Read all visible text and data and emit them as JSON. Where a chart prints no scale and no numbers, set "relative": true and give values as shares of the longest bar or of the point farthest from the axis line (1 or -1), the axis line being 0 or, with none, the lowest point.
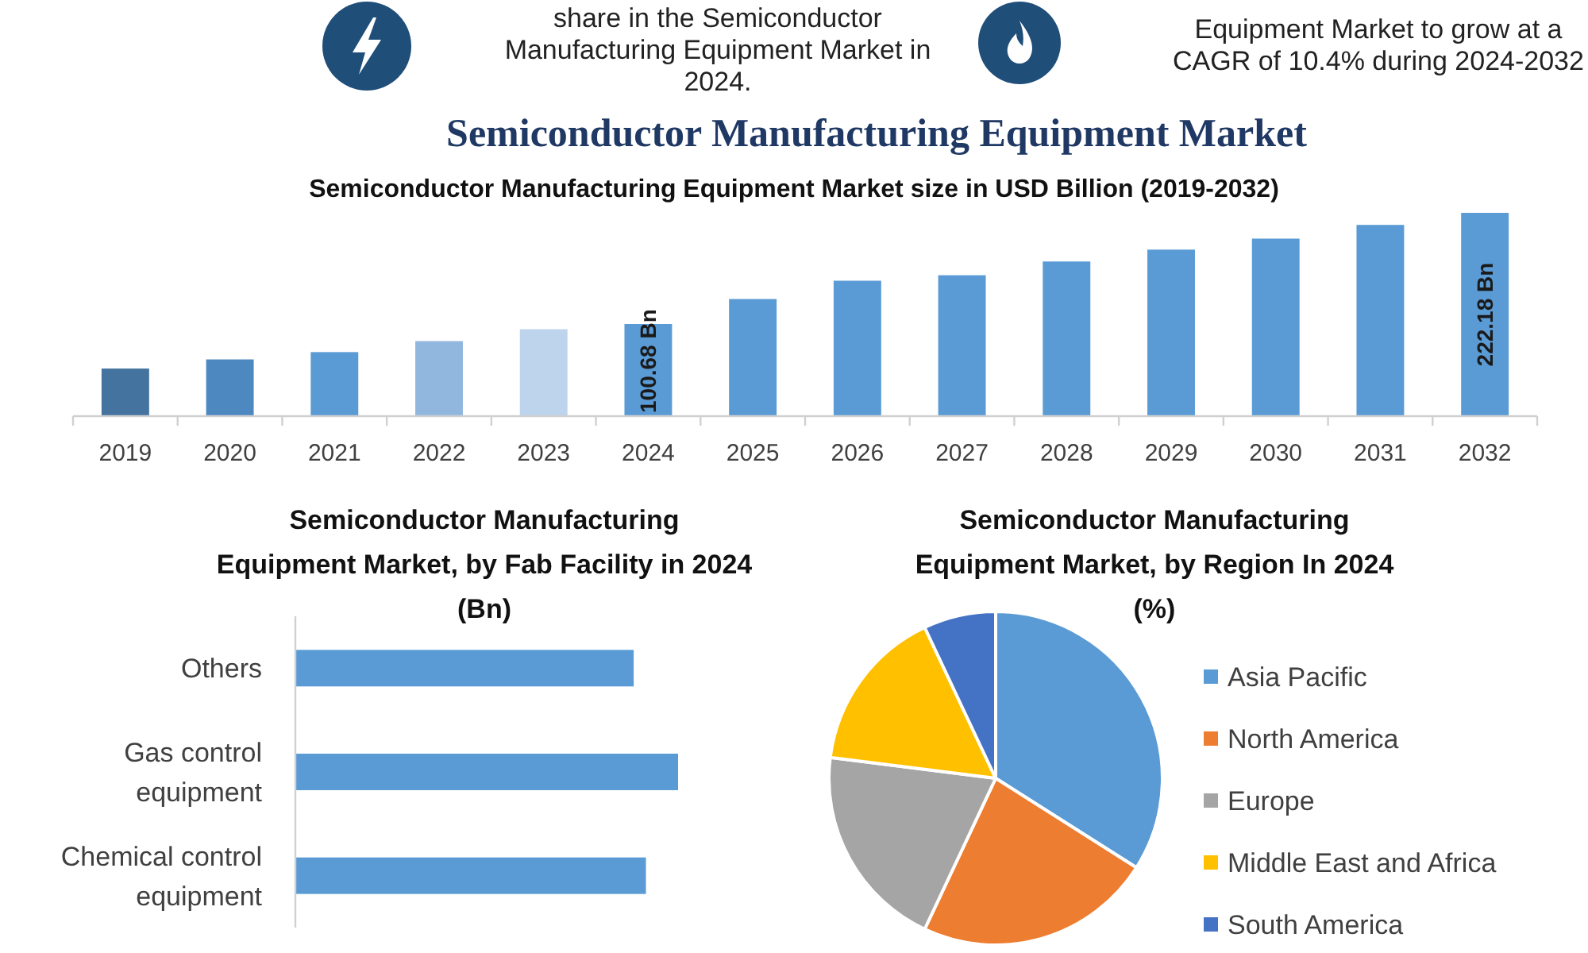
{
  "chart_data": [
    {
      "type": "bar",
      "title": "Semiconductor Manufacturing Equipment Market",
      "subtitle": "Semiconductor Manufacturing Equipment Market size in USD Billion (2019-2032)",
      "annotations": [
        "share in the Semiconductor Manufacturing Equipment Market in 2024.",
        "Equipment Market to grow at a CAGR of 10.4% during 2024-2032"
      ],
      "categories": [
        "2019",
        "2020",
        "2021",
        "2022",
        "2023",
        "2024",
        "2025",
        "2026",
        "2027",
        "2028",
        "2029",
        "2030",
        "2031",
        "2032"
      ],
      "values": [
        52,
        62,
        70,
        82,
        95,
        100.68,
        128,
        148,
        154,
        169,
        182,
        194,
        209,
        222.18
      ],
      "colors": [
        "#44739f",
        "#4e88c0",
        "#5b9bd5",
        "#92b7df",
        "#bed4ec",
        "#5b9bd5",
        "#5b9bd5",
        "#5b9bd5",
        "#5b9bd5",
        "#5b9bd5",
        "#5b9bd5",
        "#5b9bd5",
        "#5b9bd5",
        "#5b9bd5"
      ],
      "value_labels": [
        null,
        null,
        null,
        null,
        null,
        "100.68 Bn",
        null,
        null,
        null,
        null,
        null,
        null,
        null,
        "222.18 Bn"
      ],
      "tick_labels": "x"
    },
    {
      "type": "bar",
      "orientation": "horizontal",
      "relative": true,
      "title": "Semiconductor Manufacturing\nEquipment Market, by Fab Facility in 2024\n(Bn)",
      "categories": [
        "Others",
        "Gas control equipment",
        "Chemical control equipment"
      ],
      "values": [
        0.884,
        1,
        0.916
      ],
      "color": "#5b9bd5"
    },
    {
      "type": "pie",
      "title": "Semiconductor Manufacturing\nEquipment Market, by Region In 2024\n(%)",
      "categories": [
        "Asia Pacific",
        "North America",
        "Europe",
        "Middle East and Africa",
        "South America"
      ],
      "values": [
        34,
        23,
        20,
        16,
        7
      ],
      "colors": [
        "#5b9bd5",
        "#ed7d31",
        "#a5a5a5",
        "#ffc000",
        "#4472c4"
      ],
      "legend": "right"
    }
  ]
}
